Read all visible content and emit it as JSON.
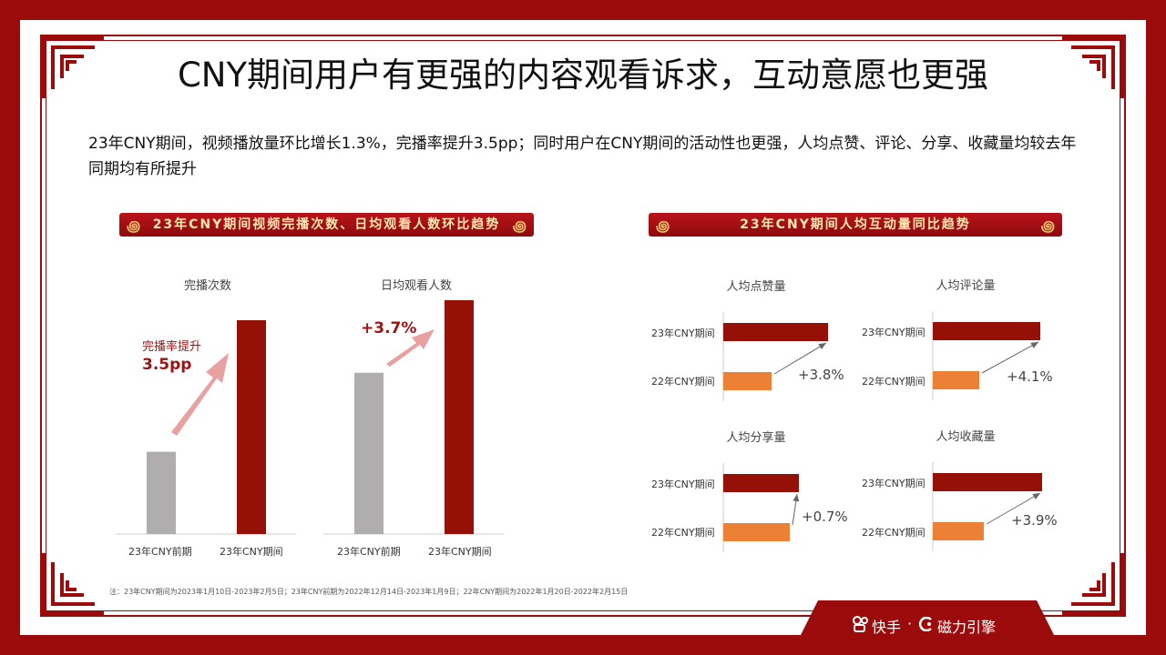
{
  "title": "CNY期间用户有更强的内容观看诉求，互动意愿也更强",
  "subtitle": "23年CNY期间，视频播放量环比增长1.3%，完播率提升3.5pp；同时用户在CNY期间的活动性也更强，人均点赞、评论、分享、收藏量均较去年同期均有所提升",
  "banner_left": "23年CNY期间视频完播次数、日均观看人数环比趋势",
  "banner_right": "23年CNY期间人均互动量同比趋势",
  "footnote": "注：23年CNY期间为2023年1月10日-2023年2月5日；23年CNY前期为2022年12月14日-2023年1月9日；22年CNY期间为2022年1月20日-2022年2月15日",
  "logo": {
    "kuaishou": "快手",
    "dot": "·",
    "cili": "磁力引擎"
  },
  "colors": {
    "dark_red": "#951108",
    "gray": "#afadad",
    "orange": "#ec8135",
    "arrow_pink": "#e8a0a0",
    "brand_red": "#9b0b0b"
  },
  "chart_data": [
    {
      "type": "bar",
      "title": "完播次数",
      "categories": [
        "23年CNY前期",
        "23年CNY期间"
      ],
      "values": [
        100,
        260
      ],
      "annotation_label": "完播率提升",
      "annotation_value": "3.5pp"
    },
    {
      "type": "bar",
      "title": "日均观看人数",
      "categories": [
        "23年CNY前期",
        "23年CNY期间"
      ],
      "values": [
        100,
        145
      ],
      "annotation_value": "+3.7%"
    },
    {
      "type": "bar",
      "orientation": "horizontal",
      "title": "人均点赞量",
      "categories": [
        "23年CNY期间",
        "22年CNY期间"
      ],
      "values": [
        115,
        53
      ],
      "change": "+3.8%"
    },
    {
      "type": "bar",
      "orientation": "horizontal",
      "title": "人均评论量",
      "categories": [
        "23年CNY期间",
        "22年CNY期间"
      ],
      "values": [
        118,
        51
      ],
      "change": "+4.1%"
    },
    {
      "type": "bar",
      "orientation": "horizontal",
      "title": "人均分享量",
      "categories": [
        "23年CNY期间",
        "22年CNY期间"
      ],
      "values": [
        83,
        73
      ],
      "change": "+0.7%"
    },
    {
      "type": "bar",
      "orientation": "horizontal",
      "title": "人均收藏量",
      "categories": [
        "23年CNY期间",
        "22年CNY期间"
      ],
      "values": [
        120,
        56
      ],
      "change": "+3.9%"
    }
  ]
}
